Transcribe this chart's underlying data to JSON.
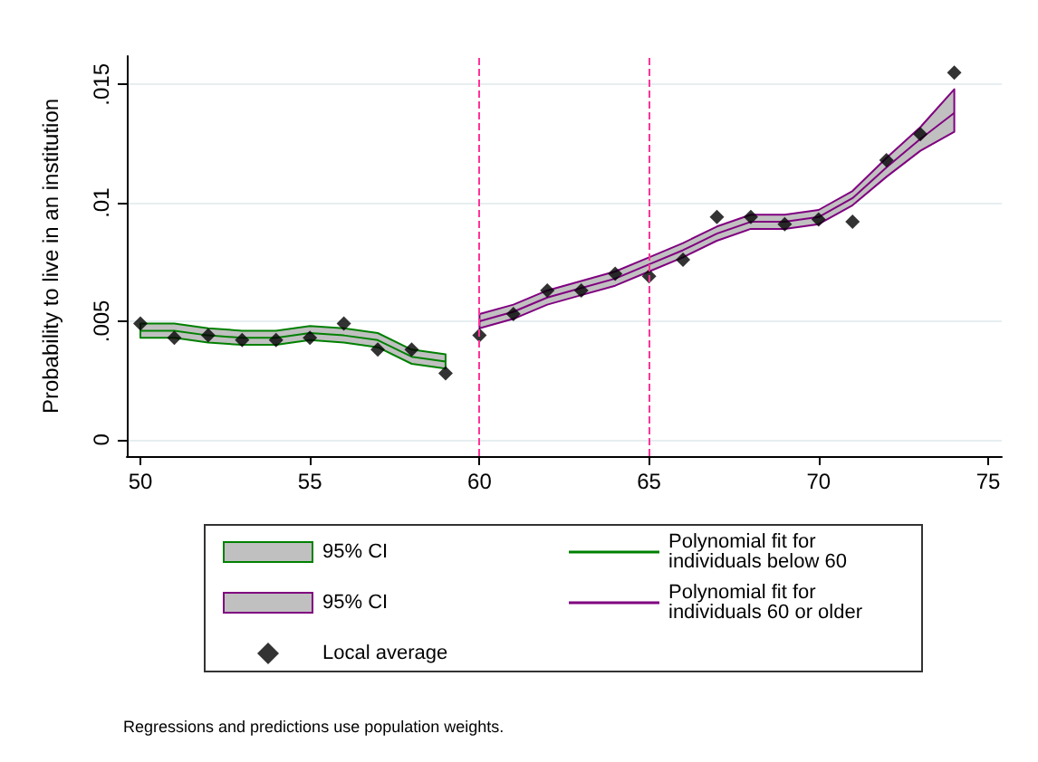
{
  "chart_data": {
    "type": "line",
    "ylabel": "Probability to live in an institution",
    "xlim": [
      49.6,
      75.4
    ],
    "xticks": [
      50,
      55,
      60,
      65,
      70,
      75
    ],
    "ylim": [
      -0.0007,
      0.0162
    ],
    "yticks": [
      {
        "value": 0,
        "label": "0"
      },
      {
        "value": 0.005,
        "label": ".005"
      },
      {
        "value": 0.01,
        "label": ".01"
      },
      {
        "value": 0.015,
        "label": ".015"
      }
    ],
    "grid": "y",
    "legend": "bottom",
    "series": [
      {
        "name": "Polynomial fit for individuals below 60",
        "color": "#008000",
        "x": [
          50,
          51,
          52,
          53,
          54,
          55,
          56,
          57,
          58,
          59
        ],
        "values": [
          0.0046,
          0.0046,
          0.0044,
          0.0043,
          0.0043,
          0.0045,
          0.0044,
          0.0042,
          0.0035,
          0.0033
        ],
        "lower": [
          0.0043,
          0.0043,
          0.0041,
          0.004,
          0.004,
          0.0042,
          0.0041,
          0.0039,
          0.0032,
          0.003
        ],
        "upper": [
          0.0049,
          0.0049,
          0.0047,
          0.0046,
          0.0046,
          0.0048,
          0.0047,
          0.0045,
          0.0038,
          0.0036
        ]
      },
      {
        "name": "Polynomial fit for individuals 60 or older",
        "color": "#800080",
        "x": [
          60,
          61,
          62,
          63,
          64,
          65,
          66,
          67,
          68,
          69,
          70,
          71,
          72,
          73,
          74
        ],
        "values": [
          0.005,
          0.0054,
          0.006,
          0.0064,
          0.0068,
          0.0074,
          0.008,
          0.0087,
          0.0092,
          0.0092,
          0.0094,
          0.0102,
          0.0115,
          0.0127,
          0.0138
        ],
        "lower": [
          0.0047,
          0.0051,
          0.0057,
          0.0061,
          0.0065,
          0.0071,
          0.0077,
          0.0084,
          0.0089,
          0.0089,
          0.0091,
          0.0099,
          0.0111,
          0.0122,
          0.013
        ],
        "upper": [
          0.0053,
          0.0057,
          0.0063,
          0.0067,
          0.0071,
          0.0077,
          0.0083,
          0.009,
          0.0095,
          0.0095,
          0.0097,
          0.0105,
          0.0119,
          0.0132,
          0.0148
        ]
      },
      {
        "name": "Local average",
        "type": "scatter",
        "color": "#000000",
        "marker": "diamond",
        "x": [
          50,
          51,
          52,
          53,
          54,
          55,
          56,
          57,
          58,
          59,
          60,
          61,
          62,
          63,
          64,
          65,
          66,
          67,
          68,
          69,
          70,
          71,
          72,
          73,
          74
        ],
        "values": [
          0.0049,
          0.0043,
          0.0044,
          0.0042,
          0.0042,
          0.0043,
          0.0049,
          0.0038,
          0.0038,
          0.0028,
          0.0044,
          0.0053,
          0.0063,
          0.0063,
          0.007,
          0.0069,
          0.0076,
          0.0094,
          0.0094,
          0.0091,
          0.0093,
          0.0092,
          0.0118,
          0.0129,
          0.0155
        ]
      }
    ],
    "ref_lines": [
      {
        "axis": "x",
        "value": 60,
        "color": "#ff3399",
        "line_style": "dashed"
      },
      {
        "axis": "x",
        "value": 65,
        "color": "#ff3399",
        "line_style": "dashed"
      }
    ],
    "annotations": [
      "95% CI",
      "95% CI",
      "Regressions and predictions use population weights."
    ]
  }
}
